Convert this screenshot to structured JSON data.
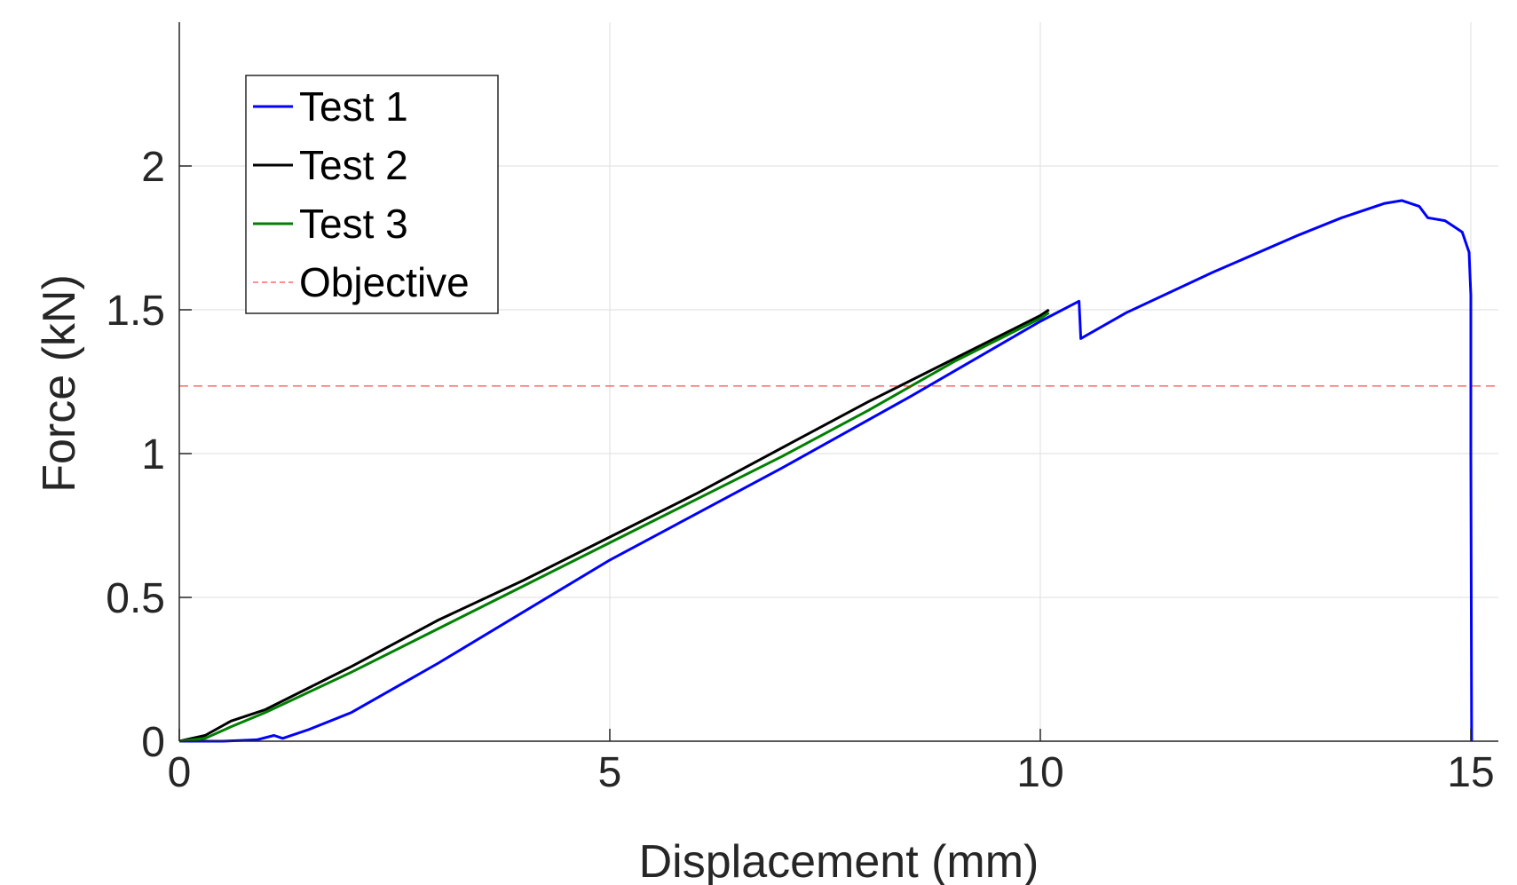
{
  "chart_data": {
    "type": "line",
    "title": "",
    "xlabel": "Displacement (mm)",
    "ylabel": "Force (kN)",
    "xlim": [
      0,
      15.32
    ],
    "ylim": [
      0,
      2.5
    ],
    "xticks": [
      0,
      5,
      10,
      15
    ],
    "xtick_labels": [
      "0",
      "5",
      "10",
      "15"
    ],
    "yticks": [
      0,
      0.5,
      1,
      1.5,
      2
    ],
    "ytick_labels": [
      "0",
      "0.5",
      "1",
      "1.5",
      "2"
    ],
    "grid": true,
    "legend_position": "top-left",
    "series": [
      {
        "name": "Test 1",
        "color": "#0000ff",
        "style": "solid",
        "x": [
          0,
          0.5,
          0.9,
          1.1,
          1.2,
          1.5,
          2,
          3,
          5,
          7,
          8.5,
          10,
          10.45,
          10.47,
          11,
          12,
          13,
          13.5,
          14,
          14.2,
          14.4,
          14.5,
          14.7,
          14.8,
          14.9,
          14.98,
          15.0,
          15.0,
          15.01
        ],
        "y": [
          0,
          0,
          0.005,
          0.02,
          0.01,
          0.04,
          0.1,
          0.27,
          0.63,
          0.95,
          1.2,
          1.46,
          1.53,
          1.4,
          1.49,
          1.63,
          1.76,
          1.82,
          1.87,
          1.88,
          1.86,
          1.82,
          1.81,
          1.79,
          1.77,
          1.7,
          1.55,
          1.0,
          0
        ]
      },
      {
        "name": "Test 2",
        "color": "#000000",
        "style": "solid",
        "x": [
          0,
          0.3,
          0.6,
          1,
          2,
          3,
          4,
          5,
          6,
          7,
          8,
          9,
          10,
          10.1
        ],
        "y": [
          0,
          0.02,
          0.07,
          0.11,
          0.26,
          0.42,
          0.56,
          0.71,
          0.86,
          1.02,
          1.18,
          1.33,
          1.48,
          1.5
        ]
      },
      {
        "name": "Test 3",
        "color": "#008000",
        "style": "solid",
        "x": [
          0,
          0.3,
          0.6,
          1,
          2,
          3,
          4,
          5,
          6,
          7,
          8,
          9,
          10,
          10.1
        ],
        "y": [
          0,
          0.01,
          0.05,
          0.1,
          0.24,
          0.39,
          0.54,
          0.69,
          0.84,
          0.99,
          1.15,
          1.32,
          1.47,
          1.49
        ]
      },
      {
        "name": "Objective",
        "color": "#ff0000",
        "style": "dashed",
        "x": [
          0,
          15.32
        ],
        "y": [
          1.235,
          1.235
        ]
      }
    ]
  }
}
